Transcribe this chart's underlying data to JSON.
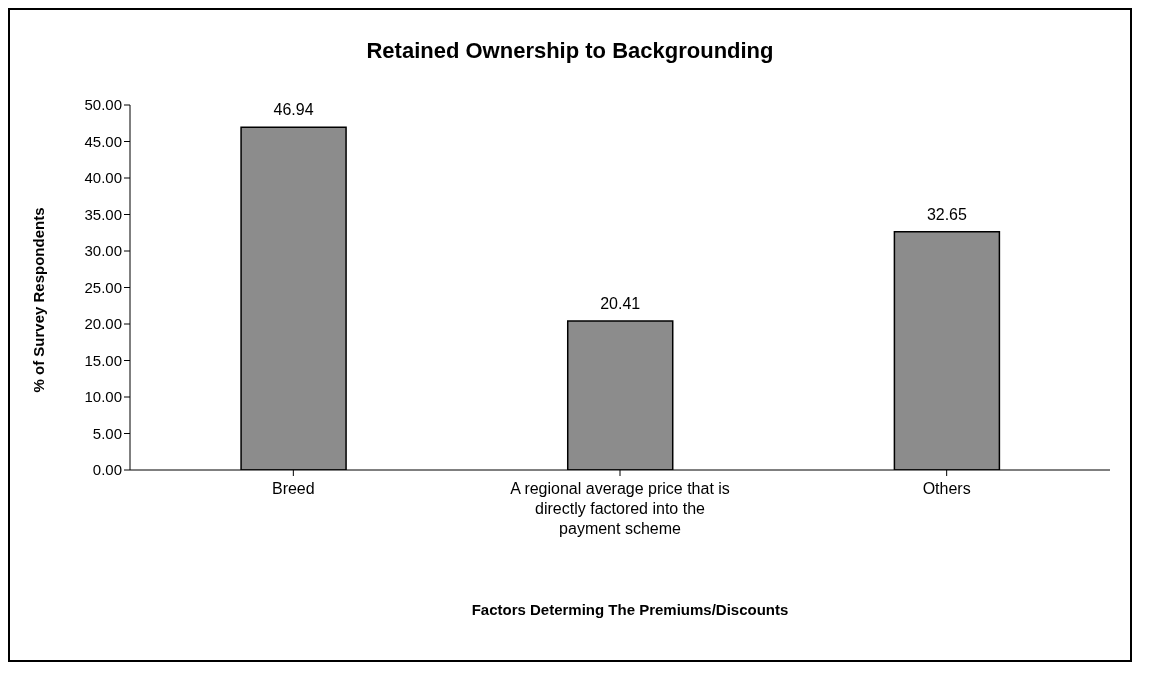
{
  "chart_data": {
    "type": "bar",
    "title": "Retained Ownership to Backgrounding",
    "xlabel": "Factors Determing The Premiums/Discounts",
    "ylabel": "% of Survey Respondents",
    "categories": [
      "Breed",
      "A regional average price that is directly factored into the payment scheme",
      "Others"
    ],
    "values": [
      46.94,
      20.41,
      32.65
    ],
    "color": "#8c8c8c",
    "ylim": [
      0,
      50
    ],
    "yticks": [
      {
        "value": 0,
        "label": "0.00"
      },
      {
        "value": 5,
        "label": "5.00"
      },
      {
        "value": 10,
        "label": "10.00"
      },
      {
        "value": 15,
        "label": "15.00"
      },
      {
        "value": 20,
        "label": "20.00"
      },
      {
        "value": 25,
        "label": "25.00"
      },
      {
        "value": 30,
        "label": "30.00"
      },
      {
        "value": 35,
        "label": "35.00"
      },
      {
        "value": 40,
        "label": "40.00"
      },
      {
        "value": 45,
        "label": "45.00"
      },
      {
        "value": 50,
        "label": "50.00"
      }
    ],
    "data_labels": true,
    "grid": false
  }
}
